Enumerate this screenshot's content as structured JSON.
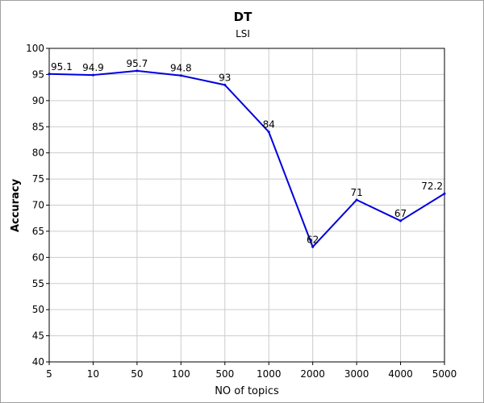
{
  "chart_data": {
    "type": "line",
    "title": "DT",
    "subtitle": "LSI",
    "xlabel": "NO of topics",
    "ylabel": "Accuracy",
    "categories": [
      "5",
      "10",
      "50",
      "100",
      "500",
      "1000",
      "2000",
      "3000",
      "4000",
      "5000"
    ],
    "series": [
      {
        "name": "",
        "values": [
          95.1,
          94.9,
          95.7,
          94.8,
          93,
          84,
          62,
          71,
          67,
          72.2
        ],
        "labels": [
          "95.1",
          "94.9",
          "95.7",
          "94.8",
          "93",
          "84",
          "62",
          "71",
          "67",
          "72.2"
        ]
      }
    ],
    "ylim": [
      40,
      100
    ],
    "yticks": [
      "40",
      "45",
      "50",
      "55",
      "60",
      "65",
      "70",
      "75",
      "80",
      "85",
      "90",
      "95",
      "100"
    ],
    "grid": true,
    "legend": "none",
    "line_color": "#0000dd"
  }
}
